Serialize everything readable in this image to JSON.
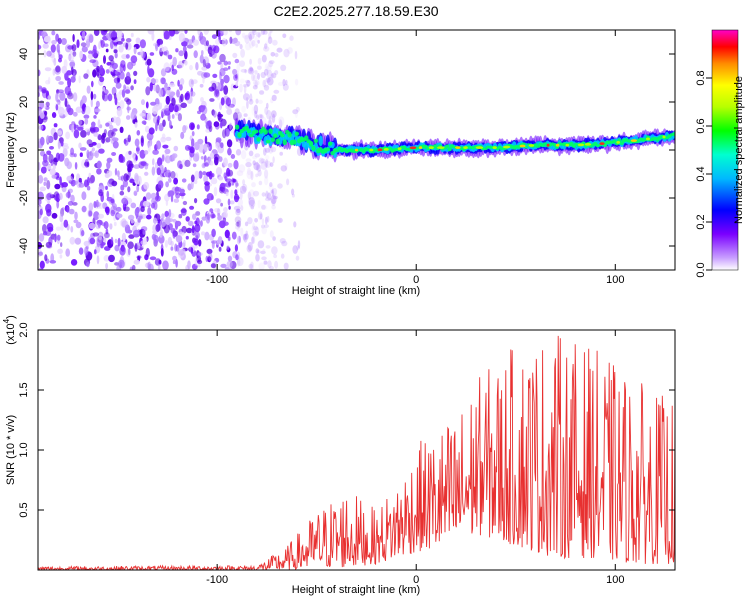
{
  "chart_data": [
    {
      "id": "spectrogram",
      "type": "heatmap",
      "title": "C2E2.2025.277.18.59.E30",
      "xlabel": "Height of straight line (km)",
      "ylabel": "Frequency (Hz)",
      "xlim": [
        -190,
        130
      ],
      "ylim": [
        -50,
        50
      ],
      "xticks": [
        -100,
        0,
        100
      ],
      "yticks": [
        -40,
        -20,
        0,
        20,
        40
      ],
      "colorbar": {
        "label": "Normalized spectral amplitude",
        "range": [
          0,
          1
        ],
        "ticks": [
          0.0,
          0.2,
          0.4,
          0.6,
          0.8
        ]
      },
      "noise_region_x": [
        -190,
        -70
      ],
      "signal_ridge": [
        {
          "x": -90,
          "y": 8
        },
        {
          "x": -75,
          "y": 6
        },
        {
          "x": -60,
          "y": 5
        },
        {
          "x": -50,
          "y": 2
        },
        {
          "x": -40,
          "y": 0
        },
        {
          "x": -20,
          "y": 0
        },
        {
          "x": 0,
          "y": 1
        },
        {
          "x": 20,
          "y": 1
        },
        {
          "x": 40,
          "y": 1
        },
        {
          "x": 60,
          "y": 2
        },
        {
          "x": 80,
          "y": 2
        },
        {
          "x": 100,
          "y": 3
        },
        {
          "x": 120,
          "y": 5
        },
        {
          "x": 130,
          "y": 6
        }
      ]
    },
    {
      "id": "snr",
      "type": "line",
      "xlabel": "Height of straight line (km)",
      "ylabel": "SNR (10 * v/v)",
      "scale_label": "(x10",
      "scale_exp": "4",
      "scale_close": ")",
      "xlim": [
        -190,
        130
      ],
      "ylim": [
        0,
        2.0
      ],
      "xticks": [
        -100,
        0,
        100
      ],
      "yticks": [
        0.5,
        1.0,
        1.5,
        2.0
      ],
      "color": "#e83030",
      "envelope": [
        {
          "x": -190,
          "low": 0.0,
          "high": 0.03
        },
        {
          "x": -80,
          "low": 0.0,
          "high": 0.04
        },
        {
          "x": -65,
          "low": 0.0,
          "high": 0.2
        },
        {
          "x": -50,
          "low": 0.02,
          "high": 0.5
        },
        {
          "x": -35,
          "low": 0.02,
          "high": 0.7
        },
        {
          "x": -20,
          "low": 0.05,
          "high": 0.5
        },
        {
          "x": -10,
          "low": 0.1,
          "high": 0.75
        },
        {
          "x": 0,
          "low": 0.15,
          "high": 1.05
        },
        {
          "x": 20,
          "low": 0.2,
          "high": 1.3
        },
        {
          "x": 30,
          "low": 0.3,
          "high": 1.6
        },
        {
          "x": 50,
          "low": 0.2,
          "high": 1.9
        },
        {
          "x": 70,
          "low": 0.1,
          "high": 2.0
        },
        {
          "x": 90,
          "low": 0.1,
          "high": 1.85
        },
        {
          "x": 110,
          "low": 0.05,
          "high": 1.6
        },
        {
          "x": 130,
          "low": 0.05,
          "high": 1.4
        }
      ]
    }
  ]
}
